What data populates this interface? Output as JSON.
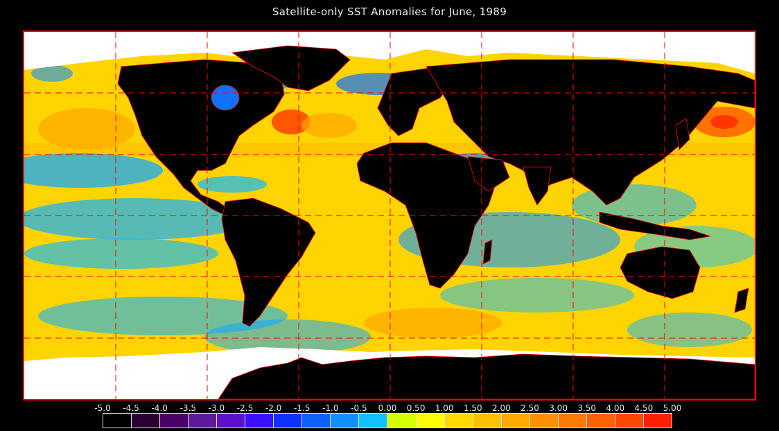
{
  "title": "Satellite-only SST Anomalies for June, 1989",
  "legend": {
    "labels": [
      "-5.0",
      "-4.5",
      "-4.0",
      "-3.5",
      "-3.0",
      "-2.5",
      "-2.0",
      "-1.5",
      "-1.0",
      "-0.5",
      "0.00",
      "0.50",
      "1.00",
      "1.50",
      "2.00",
      "2.50",
      "3.00",
      "3.50",
      "4.00",
      "4.50",
      "5.00"
    ],
    "colors": [
      "#000000",
      "#2a0033",
      "#4a0066",
      "#5a1a99",
      "#5a10cc",
      "#3a10ff",
      "#1030ff",
      "#1060ff",
      "#1090ff",
      "#10c0ff",
      "#d4ff00",
      "#ffff00",
      "#ffd800",
      "#ffc000",
      "#ffa800",
      "#ff9000",
      "#ff7800",
      "#ff6000",
      "#ff4800",
      "#ff2000"
    ]
  },
  "map": {
    "background_color": "#ffd400",
    "land_color": "#000000",
    "ice_color": "#ffffff",
    "border_color": "#ff0000",
    "gridline_color": "#ff0000",
    "gridlines": "dashed"
  }
}
